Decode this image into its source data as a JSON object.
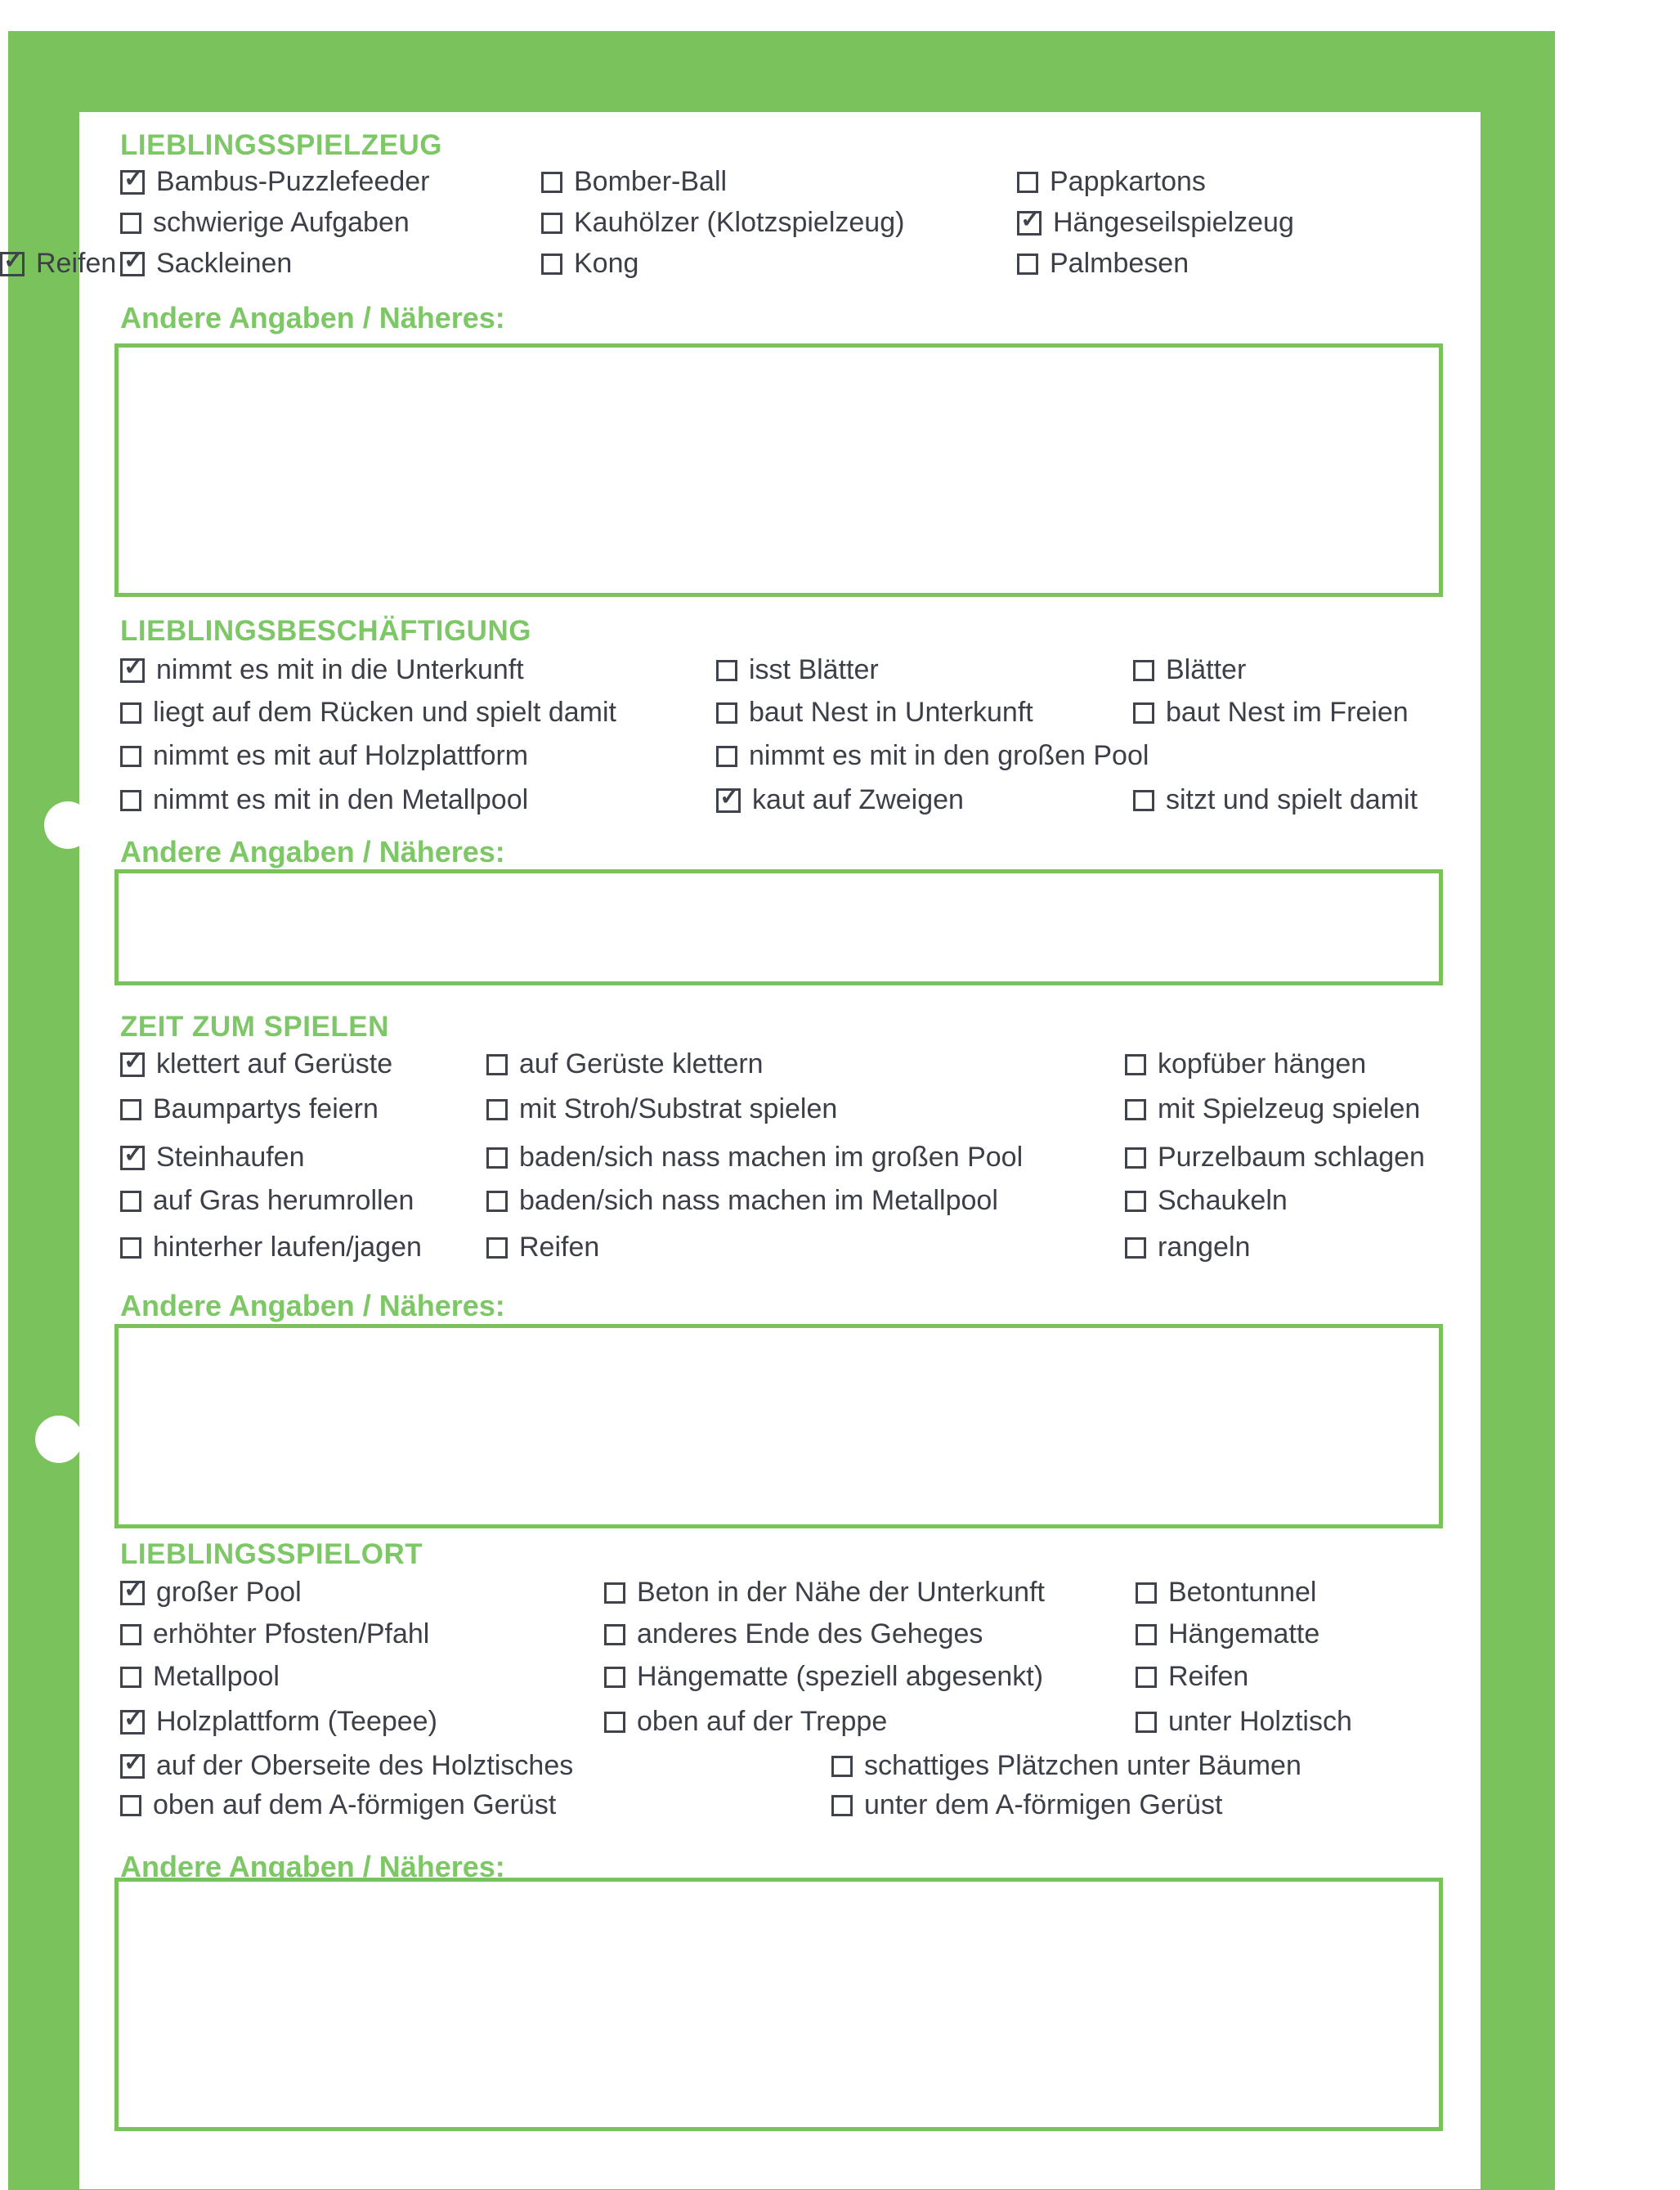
{
  "colors": {
    "frame": "#7ac35c",
    "heading": "#7dc766",
    "text": "#3c3f47"
  },
  "notes_label": "Andere Angaben / Näheres:",
  "sections": [
    {
      "title": "LIEBLINGSSPIELZEUG",
      "rows": [
        [
          {
            "label": "Bambus-Puzzlefeeder",
            "checked": true
          },
          {
            "label": "Bomber-Ball",
            "checked": false
          },
          {
            "label": "Pappkartons",
            "checked": false
          }
        ],
        [
          {
            "label": "schwierige Aufgaben",
            "checked": false
          },
          {
            "label": "Kauhölzer (Klotzspielzeug)",
            "checked": false
          },
          {
            "label": "Hängeseilspielzeug",
            "checked": true
          }
        ],
        [
          {
            "label": "Sackleinen",
            "checked": true
          },
          {
            "label": "Kong",
            "checked": false
          },
          {
            "label": "Palmbesen",
            "checked": false
          },
          {
            "label": "Reifen",
            "checked": true
          }
        ]
      ],
      "notes": ""
    },
    {
      "title": "LIEBLINGSBESCHÄFTIGUNG",
      "rows": [
        [
          {
            "label": "nimmt es mit in die Unterkunft",
            "checked": true
          },
          {
            "label": "isst Blätter",
            "checked": false
          },
          {
            "label": "Blätter",
            "checked": false
          }
        ],
        [
          {
            "label": "liegt auf dem Rücken und spielt damit",
            "checked": false
          },
          {
            "label": "baut Nest in Unterkunft",
            "checked": false
          },
          {
            "label": "baut Nest im Freien",
            "checked": false
          }
        ],
        [
          {
            "label": "nimmt es mit auf Holzplattform",
            "checked": false
          },
          {
            "label": "nimmt es mit in den großen Pool",
            "checked": false
          }
        ],
        [
          {
            "label": "nimmt es mit in den Metallpool",
            "checked": false
          },
          {
            "label": "kaut auf Zweigen",
            "checked": true
          },
          {
            "label": "sitzt und spielt damit",
            "checked": false
          }
        ]
      ],
      "notes": ""
    },
    {
      "title": "ZEIT ZUM SPIELEN",
      "rows": [
        [
          {
            "label": "klettert auf Gerüste",
            "checked": true
          },
          {
            "label": "auf Gerüste klettern",
            "checked": false
          },
          {
            "label": "kopfüber hängen",
            "checked": false
          }
        ],
        [
          {
            "label": "Baumpartys feiern",
            "checked": false
          },
          {
            "label": "mit Stroh/Substrat spielen",
            "checked": false
          },
          {
            "label": "mit Spielzeug spielen",
            "checked": false
          }
        ],
        [
          {
            "label": "Steinhaufen",
            "checked": true
          },
          {
            "label": "baden/sich nass machen im großen Pool",
            "checked": false
          },
          {
            "label": "Purzelbaum schlagen",
            "checked": false
          }
        ],
        [
          {
            "label": "auf Gras herumrollen",
            "checked": false
          },
          {
            "label": "baden/sich nass machen im Metallpool",
            "checked": false
          },
          {
            "label": "Schaukeln",
            "checked": false
          }
        ],
        [
          {
            "label": "hinterher laufen/jagen",
            "checked": false
          },
          {
            "label": "Reifen",
            "checked": false
          },
          {
            "label": "rangeln",
            "checked": false
          }
        ]
      ],
      "notes": ""
    },
    {
      "title": "LIEBLINGSSPIELORT",
      "rows": [
        [
          {
            "label": "großer Pool",
            "checked": true
          },
          {
            "label": "Beton in der Nähe der Unterkunft",
            "checked": false
          },
          {
            "label": "Betontunnel",
            "checked": false
          }
        ],
        [
          {
            "label": "erhöhter Pfosten/Pfahl",
            "checked": false
          },
          {
            "label": "anderes Ende des Geheges",
            "checked": false
          },
          {
            "label": "Hängematte",
            "checked": false
          }
        ],
        [
          {
            "label": "Metallpool",
            "checked": false
          },
          {
            "label": "Hängematte (speziell abgesenkt)",
            "checked": false
          },
          {
            "label": "Reifen",
            "checked": false
          }
        ],
        [
          {
            "label": "Holzplattform (Teepee)",
            "checked": true
          },
          {
            "label": "oben auf der Treppe",
            "checked": false
          },
          {
            "label": "unter Holztisch",
            "checked": false
          }
        ],
        [
          {
            "label": "auf der Oberseite des Holztisches",
            "checked": true
          },
          {
            "label": "schattiges Plätzchen unter Bäumen",
            "checked": false
          }
        ],
        [
          {
            "label": "oben auf dem A-förmigen Gerüst",
            "checked": false
          },
          {
            "label": "unter dem A-förmigen Gerüst",
            "checked": false
          }
        ]
      ],
      "notes": ""
    }
  ]
}
